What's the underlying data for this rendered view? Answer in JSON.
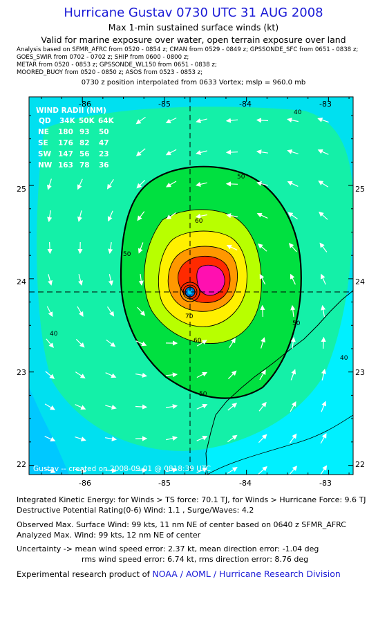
{
  "header": {
    "title": "Hurricane Gustav 0730 UTC 31 AUG 2008",
    "subtitle1": "Max 1-min sustained surface winds (kt)",
    "subtitle2": "Valid for marine exposure over water, open terrain exposure over land",
    "analysis_lines": [
      "Analysis based on   SFMR_AFRC from 0520 - 0854 z;  CMAN from 0529 - 0849 z;  GPSSONDE_SFC from 0651 - 0838 z;",
      "GOES_SWIR from 0702 - 0702 z;  SHIP from 0600 - 0800 z;",
      "METAR from 0520 - 0853 z;  GPSSONDE_WL150 from 0651 - 0838 z;",
      "MOORED_BUOY from 0520 - 0850 z;  ASOS from 0523 - 0853 z;"
    ],
    "position_note": "0730 z position interpolated from 0633 Vortex; mslp = 960.0 mb"
  },
  "map": {
    "lon_ticks": [
      "-86",
      "-85",
      "-84",
      "-83"
    ],
    "lat_ticks": [
      "25",
      "24",
      "23",
      "22"
    ],
    "lon_range": [
      -86.65,
      -82.7
    ],
    "lat_range": [
      21.9,
      25.95
    ],
    "center": {
      "lon": -84.68,
      "lat": 23.88
    },
    "contour_labels": [
      "40",
      "40",
      "40",
      "50",
      "50",
      "50",
      "50",
      "60",
      "60",
      "70"
    ],
    "colors": {
      "land": "#00f0ff",
      "c30": "#00e0f0",
      "c40": "#14f0a8",
      "c50": "#00e040",
      "c60": "#b8ff00",
      "c70": "#fff000",
      "c80": "#ff9800",
      "c90": "#ff2a00",
      "c100": "#ff10b0"
    },
    "wind_radii": {
      "title": "WIND RADII (NM)",
      "header": [
        "QD",
        "34K",
        "50K",
        "64K"
      ],
      "rows": [
        [
          "NE",
          "180",
          "93",
          "50"
        ],
        [
          "SE",
          "176",
          "82",
          "47"
        ],
        [
          "SW",
          "147",
          "56",
          "23"
        ],
        [
          "NW",
          "163",
          "78",
          "36"
        ]
      ]
    },
    "credit": "Gustav -- created on 2008-09-01 @ 0818:39 UTC"
  },
  "footer": {
    "ike": "Integrated Kinetic Energy:  for Winds > TS force: 70.1 TJ,  for Winds > Hurricane Force: 9.6 TJ",
    "dpr": "Destructive Potential Rating(0-6)   Wind: 1.1 , Surge/Waves: 4.2",
    "obs_max": "Observed Max. Surface Wind: 99 kts, 11 nm NE of center based on 0640 z SFMR_AFRC",
    "analyzed_max": "Analyzed Max. Wind: 99 kts, 12 nm NE of center",
    "uncert1": "Uncertainty -> mean wind speed error: 2.37 kt,   mean direction error:  -1.04 deg",
    "uncert2": "rms wind speed error: 6.74 kt,   rms direction error: 8.76 deg",
    "credit_prefix": "Experimental research product of ",
    "credit_org": "NOAA / AOML / Hurricane Research Division"
  }
}
